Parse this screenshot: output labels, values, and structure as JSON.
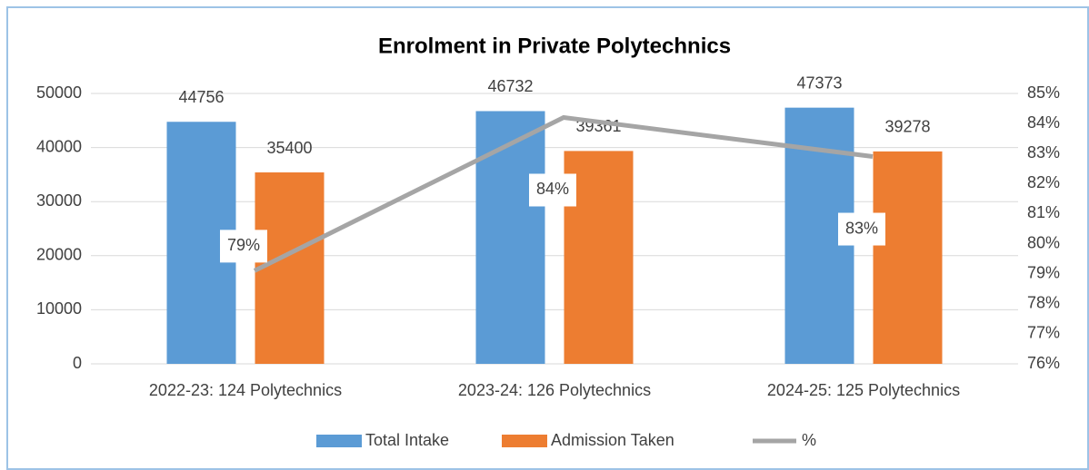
{
  "chart_data": {
    "type": "bar",
    "title": "Enrolment in Private Polytechnics",
    "categories": [
      "2022-23: 124 Polytechnics",
      "2023-24: 126 Polytechnics",
      "2024-25: 125 Polytechnics"
    ],
    "series": [
      {
        "name": "Total Intake",
        "color": "#5b9bd5",
        "values": [
          44756,
          46732,
          47373
        ]
      },
      {
        "name": "Admission Taken",
        "color": "#ed7d31",
        "values": [
          35400,
          39361,
          39278
        ]
      },
      {
        "name": "%",
        "color": "#a5a5a5",
        "type": "line",
        "axis": "y2",
        "values": [
          79.1,
          84.2,
          82.9
        ],
        "value_labels": [
          "79%",
          "84%",
          "83%"
        ]
      }
    ],
    "ylim": [
      0,
      50000
    ],
    "yticks": [
      0,
      10000,
      20000,
      30000,
      40000,
      50000
    ],
    "y2lim": [
      76,
      85
    ],
    "y2ticks": [
      {
        "value": 76,
        "label": "76%"
      },
      {
        "value": 77,
        "label": "77%"
      },
      {
        "value": 78,
        "label": "78%"
      },
      {
        "value": 79,
        "label": "79%"
      },
      {
        "value": 80,
        "label": "80%"
      },
      {
        "value": 81,
        "label": "81%"
      },
      {
        "value": 82,
        "label": "82%"
      },
      {
        "value": 83,
        "label": "83%"
      },
      {
        "value": 84,
        "label": "84%"
      },
      {
        "value": 85,
        "label": "85%"
      }
    ],
    "grid": true,
    "legend": "bottom"
  }
}
